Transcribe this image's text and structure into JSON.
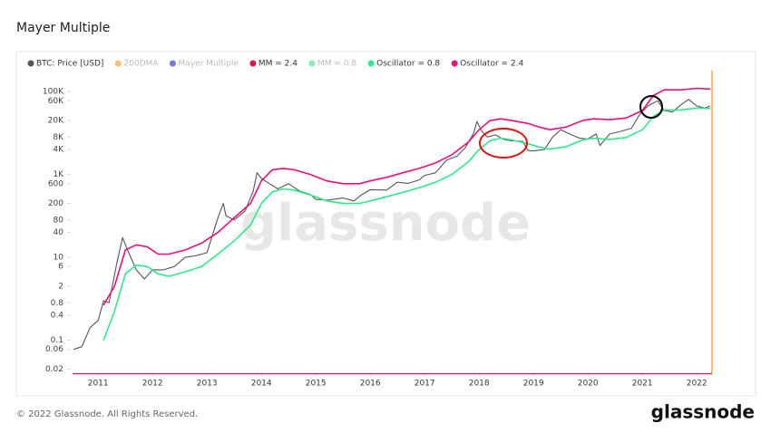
{
  "chart_data": {
    "type": "line",
    "title": "Mayer Multiple",
    "watermark": "glassnode",
    "footer": "© 2022 Glassnode. All Rights Reserved.",
    "logo": "glassnode",
    "log_scale": true,
    "xlim": [
      2010.53,
      2022.28
    ],
    "xticks": [
      2011,
      2012,
      2013,
      2014,
      2015,
      2016,
      2017,
      2018,
      2019,
      2020,
      2021,
      2022
    ],
    "ylim": [
      0.016,
      320000
    ],
    "yticks": [
      0.02,
      0.06,
      0.1,
      0.4,
      0.8,
      2,
      6,
      10,
      40,
      80,
      200,
      600,
      {
        "value": 1000,
        "label": "1K"
      },
      {
        "value": 4000,
        "label": "4K"
      },
      {
        "value": 8000,
        "label": "8K"
      },
      {
        "value": 20000,
        "label": "20K"
      },
      {
        "value": 60000,
        "label": "60K"
      },
      {
        "value": 100000,
        "label": "100K"
      }
    ],
    "series": [
      {
        "name": "BTC: Price [USD]",
        "color": "#555555",
        "muted": false,
        "x": [
          2010.55,
          2010.7,
          2010.85,
          2011.0,
          2011.1,
          2011.2,
          2011.35,
          2011.45,
          2011.55,
          2011.7,
          2011.85,
          2012.0,
          2012.2,
          2012.4,
          2012.6,
          2012.8,
          2013.0,
          2013.2,
          2013.3,
          2013.35,
          2013.5,
          2013.7,
          2013.85,
          2013.92,
          2014.0,
          2014.15,
          2014.3,
          2014.5,
          2014.7,
          2014.9,
          2015.0,
          2015.2,
          2015.5,
          2015.7,
          2015.85,
          2016.0,
          2016.3,
          2016.5,
          2016.7,
          2016.9,
          2017.0,
          2017.2,
          2017.4,
          2017.6,
          2017.75,
          2017.9,
          2017.96,
          2018.05,
          2018.15,
          2018.3,
          2018.45,
          2018.6,
          2018.8,
          2018.9,
          2019.0,
          2019.2,
          2019.35,
          2019.5,
          2019.7,
          2019.85,
          2020.0,
          2020.15,
          2020.22,
          2020.4,
          2020.6,
          2020.8,
          2020.95,
          2021.1,
          2021.28,
          2021.4,
          2021.55,
          2021.7,
          2021.85,
          2022.0,
          2022.15,
          2022.25
        ],
        "values": [
          0.06,
          0.07,
          0.2,
          0.3,
          0.9,
          0.8,
          8,
          30,
          14,
          5,
          3,
          5,
          5,
          6,
          10,
          11,
          13,
          90,
          200,
          100,
          80,
          130,
          400,
          1100,
          800,
          600,
          450,
          600,
          400,
          330,
          250,
          240,
          270,
          230,
          330,
          430,
          420,
          650,
          610,
          740,
          950,
          1100,
          2200,
          2800,
          4500,
          10000,
          19000,
          11000,
          8000,
          9000,
          7000,
          6500,
          6300,
          3800,
          3700,
          4000,
          8000,
          12000,
          9000,
          7500,
          7200,
          9500,
          5000,
          9500,
          11000,
          13000,
          28000,
          45000,
          60000,
          35000,
          32000,
          47000,
          65000,
          45000,
          40000,
          45000
        ]
      },
      {
        "name": "200DMA",
        "color": "#f7931a",
        "muted": true
      },
      {
        "name": "Mayer Multiple",
        "color": "#1a1acc",
        "muted": true
      },
      {
        "name": "MM = 2.4",
        "color": "#e0105a",
        "muted": false
      },
      {
        "name": "MM = 0.8",
        "color": "#3ddc84",
        "muted": true
      },
      {
        "name": "Oscillator = 0.8",
        "color": "#2ee88a",
        "muted": false,
        "x": [
          2011.1,
          2011.3,
          2011.5,
          2011.7,
          2011.9,
          2012.1,
          2012.3,
          2012.6,
          2012.9,
          2013.2,
          2013.5,
          2013.8,
          2014.0,
          2014.2,
          2014.4,
          2014.6,
          2014.9,
          2015.2,
          2015.5,
          2015.8,
          2016.0,
          2016.3,
          2016.6,
          2016.9,
          2017.2,
          2017.5,
          2017.8,
          2018.0,
          2018.2,
          2018.4,
          2018.6,
          2018.9,
          2019.1,
          2019.3,
          2019.6,
          2019.9,
          2020.1,
          2020.4,
          2020.7,
          2021.0,
          2021.2,
          2021.4,
          2021.7,
          2022.0,
          2022.25
        ],
        "values": [
          0.1,
          0.5,
          4,
          6.5,
          6,
          4,
          3.5,
          4.5,
          6,
          12,
          25,
          60,
          200,
          380,
          450,
          420,
          320,
          230,
          200,
          200,
          230,
          290,
          370,
          480,
          650,
          1000,
          2000,
          4000,
          6500,
          7500,
          6800,
          5500,
          4600,
          4100,
          4700,
          6800,
          7500,
          7000,
          7800,
          12000,
          25000,
          36000,
          36000,
          40000,
          39000
        ]
      },
      {
        "name": "Oscillator = 2.4",
        "color": "#e8107a",
        "muted": false,
        "x": [
          2011.1,
          2011.3,
          2011.5,
          2011.7,
          2011.9,
          2012.1,
          2012.3,
          2012.6,
          2012.9,
          2013.2,
          2013.5,
          2013.8,
          2014.0,
          2014.2,
          2014.4,
          2014.6,
          2014.9,
          2015.2,
          2015.5,
          2015.8,
          2016.0,
          2016.3,
          2016.6,
          2016.9,
          2017.2,
          2017.5,
          2017.8,
          2018.0,
          2018.2,
          2018.4,
          2018.6,
          2018.9,
          2019.1,
          2019.3,
          2019.6,
          2019.9,
          2020.1,
          2020.4,
          2020.7,
          2021.0,
          2021.2,
          2021.4,
          2021.7,
          2022.0,
          2022.25
        ],
        "values": [
          0.7,
          2,
          15,
          20,
          18,
          12,
          12,
          15,
          22,
          40,
          90,
          200,
          700,
          1300,
          1400,
          1300,
          1000,
          700,
          600,
          600,
          700,
          850,
          1100,
          1400,
          1900,
          3000,
          6000,
          12000,
          20000,
          22000,
          20000,
          17000,
          14000,
          12000,
          14000,
          20000,
          22000,
          21000,
          23000,
          35000,
          80000,
          110000,
          110000,
          120000,
          115000
        ]
      }
    ]
  }
}
